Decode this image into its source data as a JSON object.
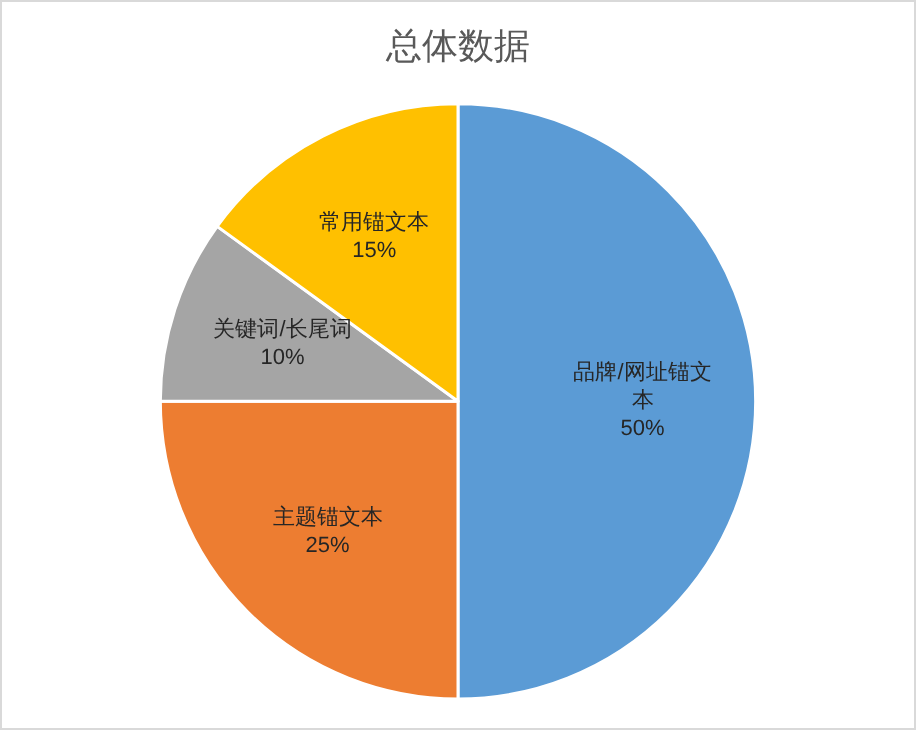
{
  "chart_data": {
    "type": "pie",
    "title": "总体数据",
    "categories": [
      "品牌/网址锚文本",
      "主题锚文本",
      "关键词/长尾词",
      "常用锚文本"
    ],
    "values": [
      50,
      25,
      10,
      15
    ],
    "value_labels": [
      "50%",
      "25%",
      "10%",
      "15%"
    ],
    "colors": [
      "#5b9bd5",
      "#ed7d31",
      "#a5a5a5",
      "#ffc000"
    ],
    "legend": false
  }
}
